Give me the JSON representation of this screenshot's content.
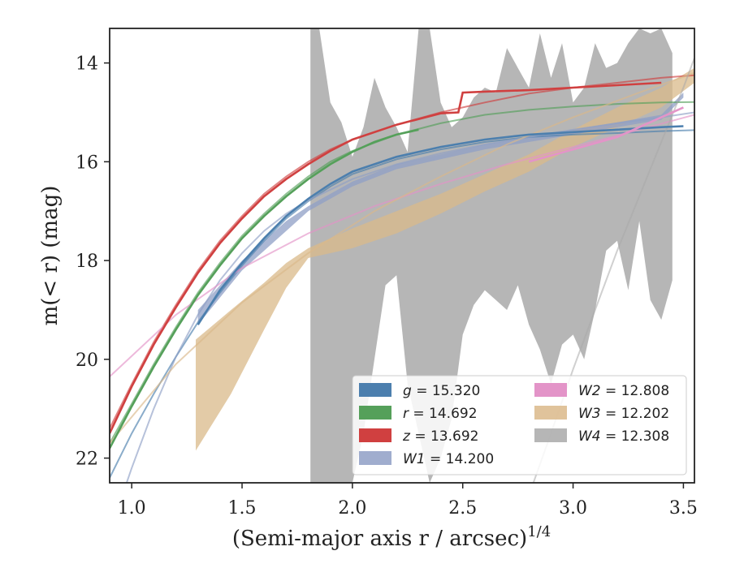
{
  "chart_data": {
    "type": "line",
    "xlabel": "(Semi-major axis r / arcsec)",
    "xlabel_sup": "1/4",
    "ylabel": "m(< r) (mag)",
    "xlim": [
      0.9,
      3.55
    ],
    "ylim": [
      22.5,
      13.3
    ],
    "y_inverted": true,
    "x_ticks": [
      1.0,
      1.5,
      2.0,
      2.5,
      3.0,
      3.5
    ],
    "x_tick_labels": [
      "1.0",
      "1.5",
      "2.0",
      "2.5",
      "3.0",
      "3.5"
    ],
    "y_ticks": [
      14,
      16,
      18,
      20,
      22
    ],
    "y_tick_labels": [
      "14",
      "16",
      "18",
      "20",
      "22"
    ],
    "grid": false,
    "legend_position": "bottom-right",
    "series": [
      {
        "name": "g = 15.320",
        "legend_main": "g",
        "legend_value": "= 15.320",
        "color": "#4c7fae",
        "kind": "line",
        "model_x": [
          0.9,
          1.0,
          1.1,
          1.2,
          1.3,
          1.4,
          1.5,
          1.6,
          1.7,
          1.8,
          1.9,
          2.0,
          2.2,
          2.4,
          2.6,
          2.8,
          3.0,
          3.2,
          3.4,
          3.55
        ],
        "model_y": [
          22.4,
          21.5,
          20.7,
          19.95,
          19.25,
          18.65,
          18.1,
          17.6,
          17.15,
          16.8,
          16.5,
          16.25,
          15.95,
          15.75,
          15.6,
          15.5,
          15.45,
          15.42,
          15.38,
          15.36
        ],
        "data_x": [
          1.3,
          1.4,
          1.5,
          1.6,
          1.7,
          1.8,
          1.9,
          2.0,
          2.2,
          2.4,
          2.6,
          2.8,
          3.0,
          3.2,
          3.4,
          3.5
        ],
        "data_y": [
          19.3,
          18.6,
          18.05,
          17.55,
          17.1,
          16.75,
          16.45,
          16.2,
          15.9,
          15.7,
          15.55,
          15.45,
          15.4,
          15.35,
          15.3,
          15.28
        ]
      },
      {
        "name": "r = 14.692",
        "legend_main": "r",
        "legend_value": "= 14.692",
        "color": "#55a05a",
        "kind": "line",
        "model_x": [
          0.9,
          1.0,
          1.1,
          1.2,
          1.3,
          1.4,
          1.5,
          1.6,
          1.7,
          1.8,
          1.9,
          2.0,
          2.2,
          2.4,
          2.6,
          2.8,
          3.0,
          3.2,
          3.4,
          3.55
        ],
        "model_y": [
          21.7,
          20.9,
          20.1,
          19.35,
          18.65,
          18.05,
          17.5,
          17.05,
          16.65,
          16.3,
          16.0,
          15.78,
          15.45,
          15.22,
          15.05,
          14.95,
          14.88,
          14.83,
          14.8,
          14.79
        ],
        "data_x": [
          0.9,
          1.0,
          1.1,
          1.2,
          1.3,
          1.4,
          1.5,
          1.6,
          1.7,
          1.8,
          1.9,
          2.0,
          2.1,
          2.2,
          2.3
        ],
        "data_y": [
          21.8,
          20.95,
          20.15,
          19.4,
          18.7,
          18.1,
          17.55,
          17.1,
          16.7,
          16.35,
          16.05,
          15.8,
          15.6,
          15.45,
          15.35
        ]
      },
      {
        "name": "z = 13.692",
        "legend_main": "z",
        "legend_value": "= 13.692",
        "color": "#d04040",
        "kind": "line",
        "model_x": [
          0.9,
          1.0,
          1.1,
          1.2,
          1.3,
          1.4,
          1.5,
          1.6,
          1.7,
          1.8,
          1.9,
          2.0,
          2.2,
          2.4,
          2.6,
          2.8,
          3.0,
          3.2,
          3.4,
          3.55
        ],
        "model_y": [
          21.4,
          20.5,
          19.65,
          18.9,
          18.2,
          17.6,
          17.1,
          16.65,
          16.3,
          16.0,
          15.75,
          15.55,
          15.25,
          15.0,
          14.8,
          14.62,
          14.5,
          14.4,
          14.3,
          14.25
        ],
        "data_x": [
          0.9,
          1.0,
          1.1,
          1.2,
          1.3,
          1.4,
          1.5,
          1.6,
          1.7,
          1.8,
          1.9,
          2.0,
          2.2,
          2.4,
          2.48,
          2.5,
          2.6,
          2.8,
          3.0,
          3.2,
          3.4
        ],
        "data_y": [
          21.5,
          20.55,
          19.7,
          18.95,
          18.25,
          17.65,
          17.15,
          16.7,
          16.35,
          16.05,
          15.78,
          15.55,
          15.25,
          15.02,
          15.0,
          14.6,
          14.58,
          14.55,
          14.5,
          14.45,
          14.4
        ]
      },
      {
        "name": "W1 = 14.200",
        "legend_main": "W1",
        "legend_value": "= 14.200",
        "color": "#8f9fc6",
        "kind": "band",
        "model_x": [
          0.9,
          1.0,
          1.1,
          1.2,
          1.3,
          1.4,
          1.5,
          1.6,
          1.7,
          1.8,
          2.0,
          2.2,
          2.4,
          2.6,
          2.8,
          3.0,
          3.2,
          3.4,
          3.55
        ],
        "model_y": [
          23.5,
          22.2,
          21.0,
          19.95,
          19.1,
          18.4,
          17.85,
          17.4,
          17.05,
          16.78,
          16.35,
          16.05,
          15.83,
          15.65,
          15.5,
          15.35,
          15.22,
          15.1,
          15.0
        ],
        "data_x": [
          1.3,
          1.5,
          1.7,
          1.8,
          2.0,
          2.2,
          2.4,
          2.6,
          2.8,
          3.0,
          3.2,
          3.4,
          3.5
        ],
        "data_lo": [
          19.0,
          18.0,
          17.2,
          16.9,
          16.4,
          16.05,
          15.85,
          15.65,
          15.5,
          15.35,
          15.2,
          15.05,
          14.6
        ],
        "data_hi": [
          19.3,
          18.2,
          17.4,
          17.0,
          16.5,
          16.15,
          15.95,
          15.75,
          15.6,
          15.45,
          15.3,
          15.15,
          14.7
        ]
      },
      {
        "name": "W2 = 12.808",
        "legend_main": "W2",
        "legend_value": "= 12.808",
        "color": "#e394c8",
        "kind": "line",
        "model_x": [
          0.9,
          1.2,
          1.5,
          1.8,
          2.1,
          2.4,
          2.7,
          3.0,
          3.3,
          3.55
        ],
        "model_y": [
          20.35,
          19.1,
          18.15,
          17.45,
          16.9,
          16.45,
          16.05,
          15.7,
          15.35,
          15.05
        ],
        "data_x": [
          2.8,
          3.0,
          3.2,
          3.4,
          3.5
        ],
        "data_y": [
          16.0,
          15.75,
          15.5,
          15.1,
          14.9
        ]
      },
      {
        "name": "W3 = 12.202",
        "legend_main": "W3",
        "legend_value": "= 12.202",
        "color": "#dab98a",
        "kind": "band",
        "model_x": [
          0.9,
          1.2,
          1.5,
          1.8,
          2.1,
          2.4,
          2.7,
          3.0,
          3.3,
          3.55
        ],
        "model_y": [
          21.7,
          20.1,
          18.85,
          17.85,
          17.0,
          16.3,
          15.65,
          15.1,
          14.6,
          14.2
        ],
        "data_x": [
          1.29,
          1.45,
          1.6,
          1.7,
          1.8,
          1.9,
          2.0,
          2.2,
          2.4,
          2.6,
          2.8,
          3.0,
          3.2,
          3.4,
          3.55
        ],
        "data_lo": [
          19.6,
          19.0,
          18.45,
          18.05,
          17.75,
          17.55,
          17.35,
          17.0,
          16.65,
          16.25,
          15.85,
          15.35,
          14.9,
          14.5,
          14.1
        ],
        "data_hi": [
          21.85,
          20.7,
          19.4,
          18.55,
          17.95,
          17.85,
          17.75,
          17.45,
          17.05,
          16.6,
          16.2,
          15.7,
          15.3,
          14.9,
          14.4
        ]
      },
      {
        "name": "W4 = 12.308",
        "legend_main": "W4",
        "legend_value": "= 12.308",
        "color": "#a9a9a9",
        "kind": "band",
        "model_x": [
          2.82,
          2.9,
          3.0,
          3.1,
          3.2,
          3.3,
          3.4,
          3.5,
          3.55
        ],
        "model_y": [
          22.5,
          21.5,
          20.2,
          19.0,
          17.8,
          16.7,
          15.6,
          14.5,
          13.9
        ],
        "data_x": [
          1.81,
          1.85,
          1.9,
          1.95,
          2.0,
          2.05,
          2.1,
          2.15,
          2.2,
          2.25,
          2.3,
          2.35,
          2.4,
          2.45,
          2.5,
          2.55,
          2.6,
          2.65,
          2.7,
          2.75,
          2.8,
          2.85,
          2.9,
          2.95,
          3.0,
          3.05,
          3.1,
          3.15,
          3.2,
          3.25,
          3.3,
          3.35,
          3.4,
          3.45
        ],
        "data_lo": [
          22.5,
          22.5,
          22.5,
          22.5,
          22.5,
          21.5,
          20.0,
          18.5,
          18.3,
          20.5,
          21.5,
          22.5,
          22.0,
          21.2,
          19.5,
          18.9,
          18.6,
          18.8,
          19.0,
          18.5,
          19.3,
          19.8,
          20.5,
          19.7,
          19.5,
          20.0,
          19.0,
          17.8,
          17.6,
          18.6,
          17.2,
          18.8,
          19.2,
          18.4
        ],
        "data_hi": [
          13.3,
          13.3,
          14.8,
          15.2,
          15.9,
          15.3,
          14.3,
          14.9,
          15.3,
          15.8,
          13.3,
          13.3,
          14.8,
          15.3,
          15.1,
          14.7,
          14.5,
          14.6,
          13.7,
          14.1,
          14.5,
          13.4,
          14.3,
          13.6,
          14.8,
          14.5,
          13.6,
          14.1,
          14.0,
          13.6,
          13.3,
          13.4,
          13.3,
          13.8
        ]
      }
    ]
  }
}
